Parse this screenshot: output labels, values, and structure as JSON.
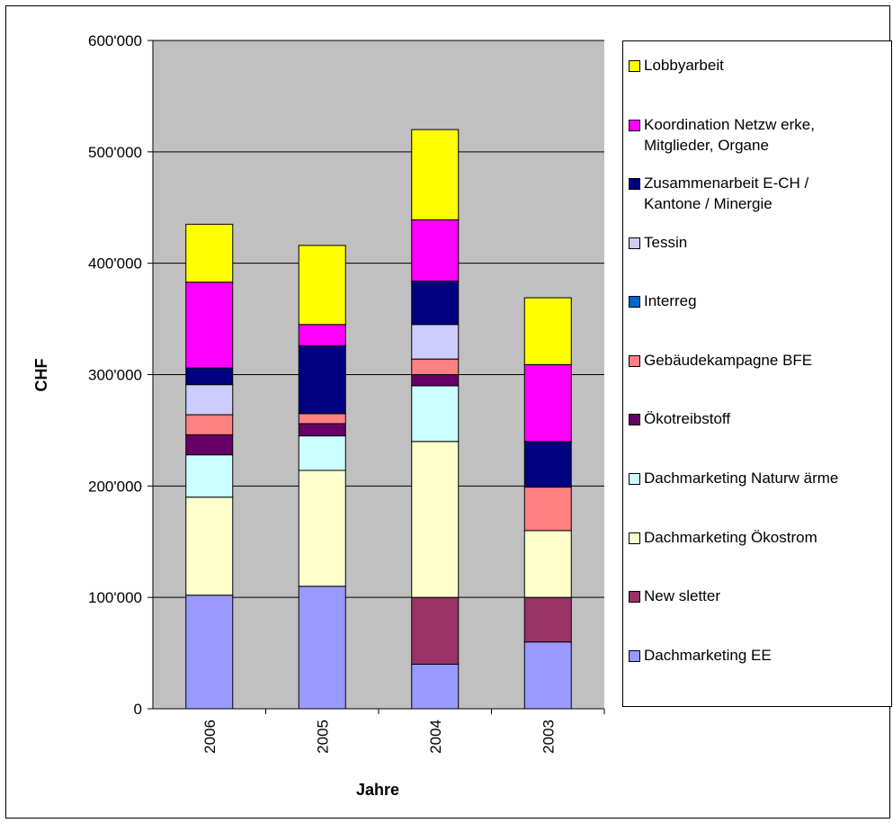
{
  "chart_data": {
    "type": "stacked-bar",
    "categories": [
      "2006",
      "2005",
      "2004",
      "2003"
    ],
    "xlabel": "Jahre",
    "ylabel": "CHF",
    "ylim": [
      0,
      600000
    ],
    "yticks": [
      0,
      100000,
      200000,
      300000,
      400000,
      500000,
      600000
    ],
    "ytick_labels": [
      "0",
      "100'000",
      "200'000",
      "300'000",
      "400'000",
      "500'000",
      "600'000"
    ],
    "grid": true,
    "legend_position": "right",
    "plot_background": "#C0C0C0",
    "series": [
      {
        "name": "Dachmarketing EE",
        "color": "#9999FF",
        "values": [
          102000,
          110000,
          40000,
          60000
        ]
      },
      {
        "name": "New sletter",
        "color": "#993366",
        "values": [
          0,
          0,
          60000,
          40000
        ]
      },
      {
        "name": "Dachmarketing Ökostrom",
        "color": "#FFFFCC",
        "values": [
          88000,
          104000,
          140000,
          60000
        ]
      },
      {
        "name": "Dachmarketing Naturw ärme",
        "color": "#CCFFFF",
        "values": [
          38000,
          31000,
          50000,
          0
        ]
      },
      {
        "name": "Ökotreibstoff",
        "color": "#660066",
        "values": [
          18000,
          11000,
          10000,
          0
        ]
      },
      {
        "name": "Gebäudekampagne BFE",
        "color": "#FF8080",
        "values": [
          18000,
          9000,
          14000,
          39000
        ]
      },
      {
        "name": "Interreg",
        "color": "#0066CC",
        "values": [
          0,
          0,
          0,
          0
        ]
      },
      {
        "name": "Tessin",
        "color": "#CCCCFF",
        "values": [
          27000,
          0,
          31000,
          0
        ]
      },
      {
        "name": "Zusammenarbeit E-CH / Kantone / Minergie",
        "color": "#000080",
        "values": [
          15000,
          61000,
          39000,
          41000
        ]
      },
      {
        "name": "Koordination Netzw erke, Mitglieder, Organe",
        "color": "#FF00FF",
        "values": [
          77000,
          19000,
          55000,
          69000
        ]
      },
      {
        "name": "Lobbyarbeit",
        "color": "#FFFF00",
        "values": [
          52000,
          71000,
          81000,
          60000
        ]
      }
    ],
    "legend_order": [
      {
        "lines": [
          "Lobbyarbeit"
        ],
        "series": 10
      },
      {
        "lines": [
          "Koordination Netzw erke,",
          "Mitglieder, Organe"
        ],
        "series": 9
      },
      {
        "lines": [
          "Zusammenarbeit E-CH /",
          "Kantone / Minergie"
        ],
        "series": 8
      },
      {
        "lines": [
          "Tessin"
        ],
        "series": 7
      },
      {
        "lines": [
          "Interreg"
        ],
        "series": 6
      },
      {
        "lines": [
          "Gebäudekampagne BFE"
        ],
        "series": 5
      },
      {
        "lines": [
          "Ökotreibstoff"
        ],
        "series": 4
      },
      {
        "lines": [
          "Dachmarketing Naturw ärme"
        ],
        "series": 3
      },
      {
        "lines": [
          "Dachmarketing Ökostrom"
        ],
        "series": 2
      },
      {
        "lines": [
          "New sletter"
        ],
        "series": 1
      },
      {
        "lines": [
          "Dachmarketing EE"
        ],
        "series": 0
      }
    ]
  }
}
